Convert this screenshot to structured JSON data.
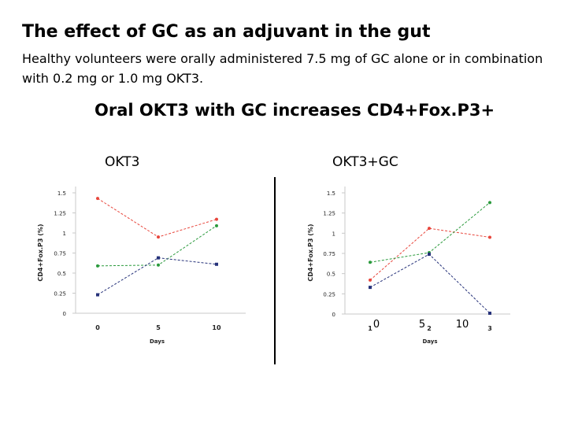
{
  "slide": {
    "title": "The effect of GC as an adjuvant in the gut",
    "subtitle": "Healthy volunteers were orally administered 7.5 mg of GC alone or in combination with 0.2 mg or 1.0 mg OKT3.",
    "heading": "Oral OKT3 with GC increases CD4+Fox.P3+",
    "panel_left": "OKT3",
    "panel_right": "OKT3+GC",
    "overlay_ticks": [
      "0",
      "5",
      "10"
    ]
  },
  "chart_data": [
    {
      "type": "line",
      "categories": [
        "0",
        "5",
        "10"
      ],
      "xlabel": "Days",
      "ylabel": "CD4+Fox.P3 (%)",
      "ylim": [
        0,
        1.5
      ],
      "yticks": [
        "0",
        "0.25",
        "0.5",
        "0.75",
        "1",
        "1.25",
        "1.5"
      ],
      "grid": false,
      "legend": "none",
      "series": [
        {
          "color": "#e8463c",
          "marker": "circle",
          "values": [
            1.43,
            0.95,
            1.17
          ]
        },
        {
          "color": "#2a9a3c",
          "marker": "circle",
          "values": [
            0.59,
            0.6,
            1.09
          ]
        },
        {
          "color": "#26327a",
          "marker": "square",
          "values": [
            0.23,
            0.69,
            0.61
          ]
        }
      ]
    },
    {
      "type": "line",
      "categories": [
        "1",
        "2",
        "3"
      ],
      "xlabel": "Days",
      "ylabel": "CD4+Fox.P3 (%)",
      "ylim": [
        0,
        1.5
      ],
      "yticks": [
        "0",
        "0.25",
        "0.5",
        "0.75",
        "1",
        "1.25",
        "1.5"
      ],
      "grid": false,
      "legend": "none",
      "series": [
        {
          "color": "#e8463c",
          "marker": "circle",
          "values": [
            0.42,
            1.06,
            0.95
          ]
        },
        {
          "color": "#2a9a3c",
          "marker": "circle",
          "values": [
            0.64,
            0.76,
            1.38
          ]
        },
        {
          "color": "#26327a",
          "marker": "square",
          "values": [
            0.33,
            0.74,
            0.01
          ]
        }
      ]
    }
  ]
}
